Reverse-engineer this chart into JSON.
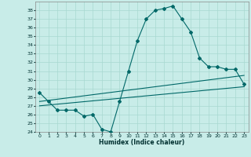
{
  "title": "",
  "xlabel": "Humidex (Indice chaleur)",
  "background_color": "#c8ece8",
  "grid_color": "#a8d8d0",
  "line_color": "#006868",
  "xlim": [
    -0.5,
    23.5
  ],
  "ylim": [
    24,
    39
  ],
  "xticks": [
    0,
    1,
    2,
    3,
    4,
    5,
    6,
    7,
    8,
    9,
    10,
    11,
    12,
    13,
    14,
    15,
    16,
    17,
    18,
    19,
    20,
    21,
    22,
    23
  ],
  "yticks": [
    24,
    25,
    26,
    27,
    28,
    29,
    30,
    31,
    32,
    33,
    34,
    35,
    36,
    37,
    38
  ],
  "series1_x": [
    0,
    1,
    2,
    3,
    4,
    5,
    6,
    7,
    8,
    9,
    10,
    11,
    12,
    13,
    14,
    15,
    16,
    17,
    18,
    19,
    20,
    21,
    22,
    23
  ],
  "series1_y": [
    28.5,
    27.5,
    26.5,
    26.5,
    26.5,
    25.8,
    26.0,
    24.3,
    24.0,
    27.5,
    31.0,
    34.5,
    37.0,
    38.0,
    38.2,
    38.5,
    37.0,
    35.5,
    32.5,
    31.5,
    31.5,
    31.2,
    31.2,
    29.5
  ],
  "trend1_x": [
    0,
    23
  ],
  "trend1_y": [
    27.5,
    30.5
  ],
  "trend2_x": [
    0,
    23
  ],
  "trend2_y": [
    27.0,
    29.2
  ],
  "marker": "D",
  "markersize": 2.0,
  "linewidth": 0.8
}
